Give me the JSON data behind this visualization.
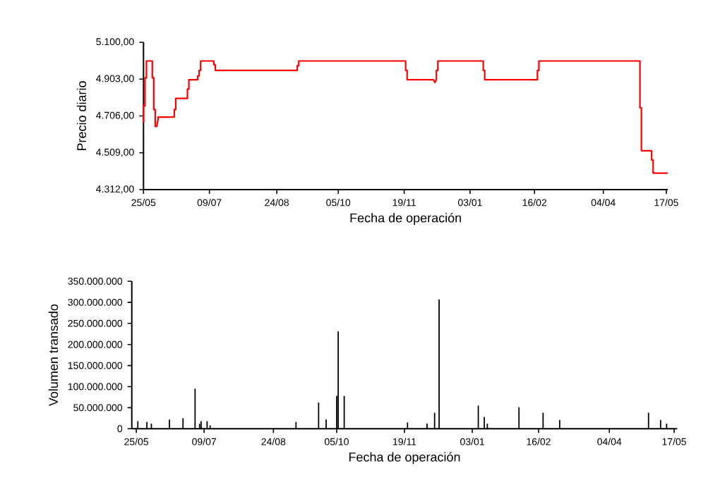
{
  "chart_data": [
    {
      "type": "line",
      "xlabel": "Fecha de operación",
      "ylabel": "Precio diario",
      "color": "#ff0000",
      "x": [
        "2001-05-25",
        "2001-05-25",
        "2001-05-26",
        "2001-05-26",
        "2001-05-27",
        "2001-05-27",
        "2001-05-31",
        "2001-05-31",
        "2001-06-01",
        "2001-06-01",
        "2001-06-02",
        "2001-06-02",
        "2001-06-03",
        "2001-06-04",
        "2001-06-04",
        "2001-06-15",
        "2001-06-15",
        "2001-06-16",
        "2001-06-16",
        "2001-06-24",
        "2001-06-24",
        "2001-06-25",
        "2001-06-25",
        "2001-07-01",
        "2001-07-01",
        "2001-07-02",
        "2001-07-02",
        "2001-07-03",
        "2001-07-03",
        "2001-07-12",
        "2001-07-12",
        "2001-07-13",
        "2001-07-13",
        "2001-09-07",
        "2001-09-07",
        "2001-09-08",
        "2001-09-08",
        "2001-11-20",
        "2001-11-20",
        "2001-11-21",
        "2001-11-21",
        "2001-12-09",
        "2001-12-10",
        "2001-12-11",
        "2001-12-11",
        "2001-12-12",
        "2001-12-12",
        "2002-01-12",
        "2002-01-12",
        "2002-01-13",
        "2002-01-13",
        "2002-02-18",
        "2002-02-18",
        "2002-02-19",
        "2002-02-19",
        "2002-04-29",
        "2002-04-29",
        "2002-04-30",
        "2002-04-30",
        "2002-05-07",
        "2002-05-07",
        "2002-05-08",
        "2002-05-08",
        "2002-05-18"
      ],
      "values": [
        4670,
        4760,
        4760,
        4910,
        4910,
        5000,
        5000,
        4910,
        4910,
        4740,
        4740,
        4650,
        4650,
        4690,
        4700,
        4700,
        4740,
        4740,
        4800,
        4800,
        4850,
        4850,
        4900,
        4900,
        4920,
        4920,
        4950,
        4950,
        5000,
        5000,
        4980,
        4980,
        4950,
        4950,
        4975,
        4975,
        5000,
        5000,
        4950,
        4950,
        4900,
        4900,
        4885,
        4900,
        4950,
        4950,
        5000,
        5000,
        4950,
        4950,
        4900,
        4900,
        4950,
        4950,
        5000,
        5000,
        4750,
        4750,
        4520,
        4520,
        4470,
        4470,
        4400,
        4400
      ],
      "xlim": [
        "2001-05-25",
        "2002-05-18"
      ],
      "xticks": [
        {
          "value": "2001-05-25",
          "label": "25/05"
        },
        {
          "value": "2001-07-09",
          "label": "09/07"
        },
        {
          "value": "2001-08-24",
          "label": "24/08"
        },
        {
          "value": "2001-10-05",
          "label": "05/10"
        },
        {
          "value": "2001-11-19",
          "label": "19/11"
        },
        {
          "value": "2002-01-03",
          "label": "03/01"
        },
        {
          "value": "2002-02-16",
          "label": "16/02"
        },
        {
          "value": "2002-04-04",
          "label": "04/04"
        },
        {
          "value": "2002-05-17",
          "label": "17/05"
        }
      ],
      "ylim": [
        4312,
        5100
      ],
      "yticks": [
        {
          "value": 4312,
          "label": "4.312,00"
        },
        {
          "value": 4509,
          "label": "4.509,00"
        },
        {
          "value": 4706,
          "label": "4.706,00"
        },
        {
          "value": 4903,
          "label": "4.903,00"
        },
        {
          "value": 5100,
          "label": "5.100,00"
        }
      ]
    },
    {
      "type": "bar",
      "xlabel": "Fecha de operación",
      "ylabel": "Volumen transado",
      "color": "#000000",
      "x": [
        "2001-05-26",
        "2001-06-01",
        "2001-06-04",
        "2001-06-16",
        "2001-06-25",
        "2001-07-03",
        "2001-07-06",
        "2001-07-07",
        "2001-07-11",
        "2001-07-13",
        "2001-09-08",
        "2001-09-23",
        "2001-09-28",
        "2001-10-05",
        "2001-10-06",
        "2001-10-10",
        "2001-11-21",
        "2001-12-04",
        "2001-12-09",
        "2001-12-12",
        "2002-01-07",
        "2002-01-11",
        "2002-01-13",
        "2002-02-03",
        "2002-02-19",
        "2002-03-02",
        "2002-04-30",
        "2002-05-08",
        "2002-05-12"
      ],
      "values": [
        18000000,
        16000000,
        12000000,
        22000000,
        25000000,
        95000000,
        12000000,
        18000000,
        18000000,
        8000000,
        16000000,
        62000000,
        22000000,
        78000000,
        231000000,
        78000000,
        15000000,
        12000000,
        38000000,
        307000000,
        55000000,
        28000000,
        12000000,
        51000000,
        38000000,
        21000000,
        38000000,
        21000000,
        12000000
      ],
      "xlim": [
        "2001-05-22",
        "2002-05-19"
      ],
      "xticks": [
        {
          "value": "2001-05-25",
          "label": "25/05"
        },
        {
          "value": "2001-07-09",
          "label": "09/07"
        },
        {
          "value": "2001-08-24",
          "label": "24/08"
        },
        {
          "value": "2001-10-05",
          "label": "05/10"
        },
        {
          "value": "2001-11-19",
          "label": "19/11"
        },
        {
          "value": "2002-01-03",
          "label": "03/01"
        },
        {
          "value": "2002-02-16",
          "label": "16/02"
        },
        {
          "value": "2002-04-04",
          "label": "04/04"
        },
        {
          "value": "2002-05-17",
          "label": "17/05"
        }
      ],
      "ylim": [
        0,
        350000000
      ],
      "yticks": [
        0,
        {
          "value": 50000000,
          "label": "50.000.000"
        },
        {
          "value": 100000000,
          "label": "100.000.000"
        },
        {
          "value": 150000000,
          "label": "150.000.000"
        },
        {
          "value": 200000000,
          "label": "200.000.000"
        },
        {
          "value": 250000000,
          "label": "250.000.000"
        },
        {
          "value": 300000000,
          "label": "300.000.000"
        },
        {
          "value": 350000000,
          "label": "350.000.000"
        }
      ]
    }
  ]
}
